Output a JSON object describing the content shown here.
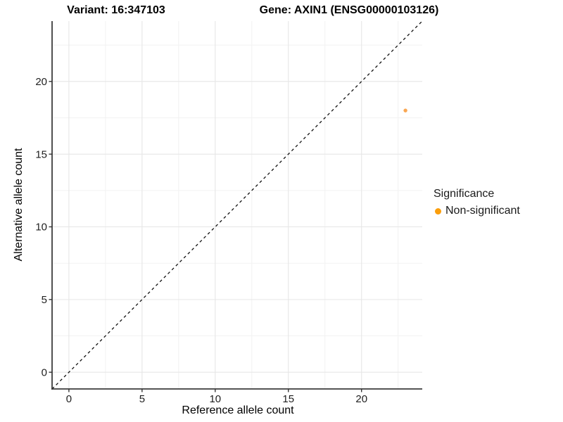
{
  "titles": {
    "left": "Variant: 16:347103",
    "right": "Gene: AXIN1 (ENSG00000103126)"
  },
  "chart_data": {
    "type": "scatter",
    "xlabel": "Reference allele count",
    "ylabel": "Alternative allele count",
    "xlim": [
      -1.15,
      24.15
    ],
    "ylim": [
      -1.15,
      24.15
    ],
    "x_major_ticks": [
      0,
      5,
      10,
      15,
      20
    ],
    "y_major_ticks": [
      0,
      5,
      10,
      15,
      20
    ],
    "x_minor_ticks": [
      2.5,
      7.5,
      12.5,
      17.5,
      22.5
    ],
    "y_minor_ticks": [
      2.5,
      7.5,
      12.5,
      17.5,
      22.5
    ],
    "grid": true,
    "reference_line": {
      "type": "identity y=x",
      "style": "dashed",
      "color": "#111111"
    },
    "points": [
      {
        "x": 23,
        "y": 18,
        "series": "Non-significant"
      }
    ],
    "legend": {
      "title": "Significance",
      "position": "right",
      "entries": [
        {
          "label": "Non-significant",
          "color": "#FFA311"
        }
      ]
    }
  },
  "colors": {
    "point": "#F9A752",
    "legend_dot": "#FB9E0B",
    "axis_line": "#3c3c3c",
    "tick_mark": "#333333",
    "tick_label": "#1f1f1f",
    "grid_major": "#e6e6e6",
    "grid_minor": "#f2f2f2"
  }
}
